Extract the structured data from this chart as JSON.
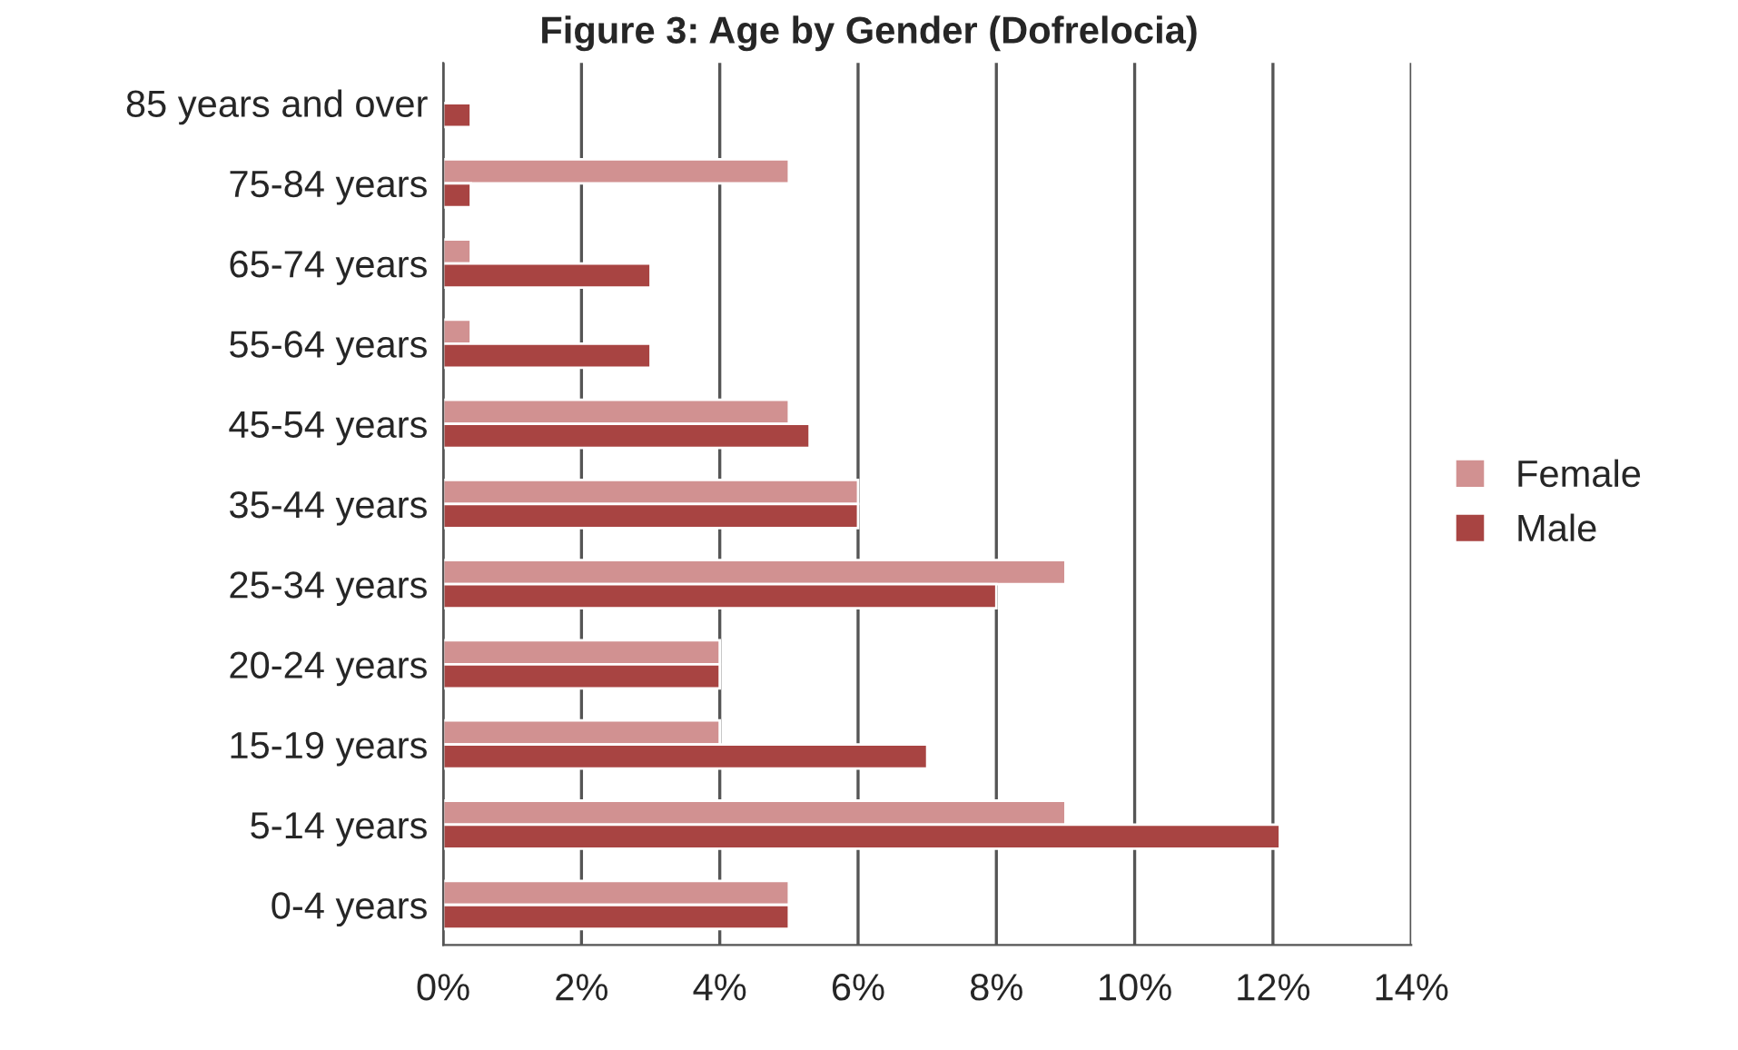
{
  "chart_data": {
    "type": "bar",
    "orientation": "horizontal",
    "title": "Figure 3: Age by Gender (Dofrelocia)",
    "categories": [
      "85 years and over",
      "75-84 years",
      "65-74 years",
      "55-64 years",
      "45-54 years",
      "35-44 years",
      "25-34 years",
      "20-24 years",
      "15-19 years",
      "5-14 years",
      "0-4 years"
    ],
    "series": [
      {
        "name": "Female",
        "color": "#d19191",
        "values": [
          null,
          5.0,
          0.4,
          0.4,
          5.0,
          6.0,
          9.0,
          4.0,
          4.0,
          9.0,
          5.0
        ]
      },
      {
        "name": "Male",
        "color": "#a84442",
        "values": [
          0.4,
          0.4,
          3.0,
          3.0,
          5.3,
          6.0,
          8.0,
          4.0,
          7.0,
          12.1,
          5.0
        ]
      }
    ],
    "xlim": [
      0,
      14
    ],
    "xticks": [
      {
        "value": 0,
        "label": "0%"
      },
      {
        "value": 2,
        "label": "2%"
      },
      {
        "value": 4,
        "label": "4%"
      },
      {
        "value": 6,
        "label": "6%"
      },
      {
        "value": 8,
        "label": "8%"
      },
      {
        "value": 10,
        "label": "10%"
      },
      {
        "value": 12,
        "label": "12%"
      },
      {
        "value": 14,
        "label": "14%"
      }
    ],
    "grid": "x",
    "legend": "right"
  }
}
